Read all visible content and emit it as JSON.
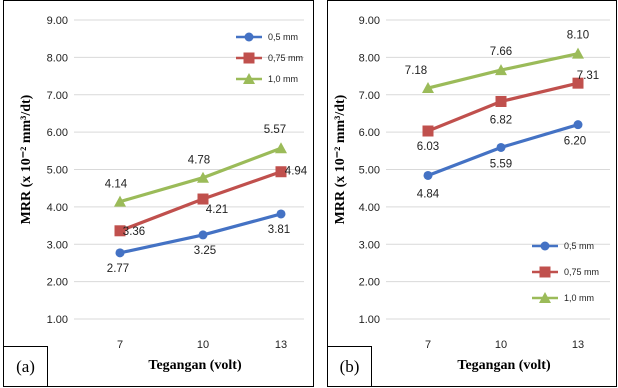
{
  "chart_data": [
    {
      "type": "line",
      "panel_label": "(a)",
      "xlabel": "Tegangan (volt)",
      "ylabel": "MRR (x 10⁻² mm³/dt)",
      "categories": [
        "7",
        "10",
        "13"
      ],
      "ylim": [
        1.0,
        9.0
      ],
      "yticks": [
        "1.00",
        "2.00",
        "3.00",
        "4.00",
        "5.00",
        "6.00",
        "7.00",
        "8.00",
        "9.00"
      ],
      "grid": true,
      "legend_position": "top-right",
      "series": [
        {
          "name": "0,5 mm",
          "values": [
            2.77,
            3.25,
            3.81
          ],
          "labels": [
            "2.77",
            "3.25",
            "3.81"
          ],
          "color": "#4472C4",
          "marker": "circle"
        },
        {
          "name": "0,75 mm",
          "values": [
            3.36,
            4.21,
            4.94
          ],
          "labels": [
            "3.36",
            "4.21",
            "4.94"
          ],
          "color": "#C0504D",
          "marker": "square"
        },
        {
          "name": "1,0 mm",
          "values": [
            4.14,
            4.78,
            5.57
          ],
          "labels": [
            "4.14",
            "4.78",
            "5.57"
          ],
          "color": "#9BBB59",
          "marker": "triangle"
        }
      ]
    },
    {
      "type": "line",
      "panel_label": "(b)",
      "xlabel": "Tegangan (volt)",
      "ylabel": "MRR (x 10⁻² mm³/dt)",
      "categories": [
        "7",
        "10",
        "13"
      ],
      "ylim": [
        1.0,
        9.0
      ],
      "yticks": [
        "1.00",
        "2.00",
        "3.00",
        "4.00",
        "5.00",
        "6.00",
        "7.00",
        "8.00",
        "9.00"
      ],
      "grid": true,
      "legend_position": "bottom-right",
      "series": [
        {
          "name": "0,5 mm",
          "values": [
            4.84,
            5.59,
            6.2
          ],
          "labels": [
            "4.84",
            "5.59",
            "6.20"
          ],
          "color": "#4472C4",
          "marker": "circle"
        },
        {
          "name": "0,75 mm",
          "values": [
            6.03,
            6.82,
            7.31
          ],
          "labels": [
            "6.03",
            "6.82",
            "7.31"
          ],
          "color": "#C0504D",
          "marker": "square"
        },
        {
          "name": "1,0 mm",
          "values": [
            7.18,
            7.66,
            8.1
          ],
          "labels": [
            "7.18",
            "7.66",
            "8.10"
          ],
          "color": "#9BBB59",
          "marker": "triangle"
        }
      ]
    }
  ]
}
